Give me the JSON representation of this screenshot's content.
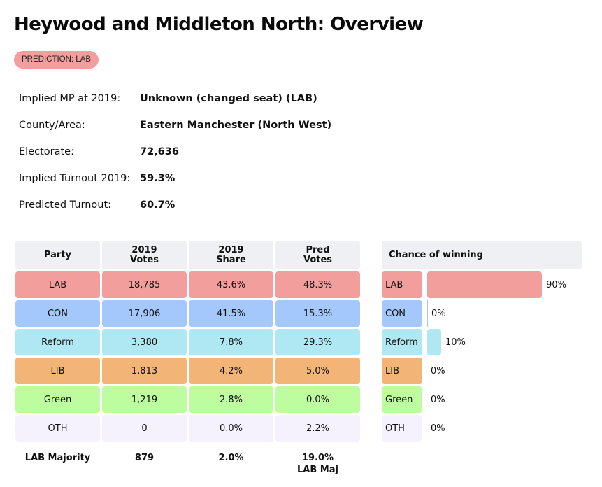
{
  "header": {
    "title": "Heywood and Middleton North: Overview",
    "prediction_badge": "PREDICTION: LAB",
    "badge_color": "#f29e9c"
  },
  "info": [
    {
      "label": "Implied MP at 2019:",
      "value": "Unknown (changed seat)  (LAB)"
    },
    {
      "label": "County/Area:",
      "value": "Eastern Manchester (North West)"
    },
    {
      "label": "Electorate:",
      "value": "72,636"
    },
    {
      "label": "Implied Turnout 2019:",
      "value": "59.3%"
    },
    {
      "label": "Predicted Turnout:",
      "value": "60.7%"
    }
  ],
  "results_table": {
    "headers": [
      "Party",
      "2019 Votes",
      "2019 Share",
      "Pred Votes"
    ],
    "rows": [
      {
        "party": "LAB",
        "votes_2019": "18,785",
        "share_2019": "43.6%",
        "pred": "48.3%",
        "color": "#f29e9c"
      },
      {
        "party": "CON",
        "votes_2019": "17,906",
        "share_2019": "41.5%",
        "pred": "15.3%",
        "color": "#a4c8fb"
      },
      {
        "party": "Reform",
        "votes_2019": "3,380",
        "share_2019": "7.8%",
        "pred": "29.3%",
        "color": "#afe8f2"
      },
      {
        "party": "LIB",
        "votes_2019": "1,813",
        "share_2019": "4.2%",
        "pred": "5.0%",
        "color": "#f2b477"
      },
      {
        "party": "Green",
        "votes_2019": "1,219",
        "share_2019": "2.8%",
        "pred": "0.0%",
        "color": "#bdfda0"
      },
      {
        "party": "OTH",
        "votes_2019": "0",
        "share_2019": "0.0%",
        "pred": "2.2%",
        "color": "#f5f2fd"
      }
    ],
    "footer": {
      "label": "LAB Majority",
      "votes_2019": "879",
      "share_2019": "2.0%",
      "pred_line1": "19.0%",
      "pred_line2": "LAB Maj"
    }
  },
  "chance_of_winning": {
    "title": "Chance of winning",
    "rows": [
      {
        "party": "LAB",
        "percent": 90,
        "label": "90%",
        "color": "#f29e9c"
      },
      {
        "party": "CON",
        "percent": 0,
        "label": "0%",
        "color": "#a4c8fb"
      },
      {
        "party": "Reform",
        "percent": 10,
        "label": "10%",
        "color": "#afe8f2"
      },
      {
        "party": "LIB",
        "percent": 0,
        "label": "0%",
        "color": "#f2b477"
      },
      {
        "party": "Green",
        "percent": 0,
        "label": "0%",
        "color": "#bdfda0"
      },
      {
        "party": "OTH",
        "percent": 0,
        "label": "0%",
        "color": "#f5f2fd"
      }
    ]
  }
}
